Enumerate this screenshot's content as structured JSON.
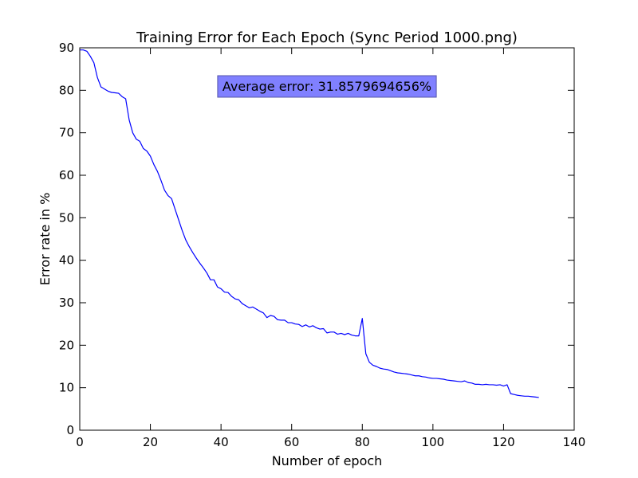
{
  "chart_data": {
    "type": "line",
    "title": "Training Error for Each Epoch (Sync Period 1000.png)",
    "xlabel": "Number of epoch",
    "ylabel": "Error rate in %",
    "xlim": [
      0,
      140
    ],
    "ylim": [
      0,
      90
    ],
    "xticks": [
      0,
      20,
      40,
      60,
      80,
      100,
      120,
      140
    ],
    "yticks": [
      0,
      10,
      20,
      30,
      40,
      50,
      60,
      70,
      80,
      90
    ],
    "grid": false,
    "annotation": {
      "text": "Average error: 31.8579694656%",
      "x": 70,
      "y": 81,
      "facecolor": "#8080ff"
    },
    "series": [
      {
        "color": "#0000ff",
        "x": [
          0,
          1,
          2,
          3,
          4,
          5,
          6,
          7,
          8,
          9,
          10,
          11,
          12,
          13,
          14,
          15,
          16,
          17,
          18,
          19,
          20,
          21,
          22,
          23,
          24,
          25,
          26,
          27,
          28,
          29,
          30,
          31,
          32,
          33,
          34,
          35,
          36,
          37,
          38,
          39,
          40,
          41,
          42,
          43,
          44,
          45,
          46,
          47,
          48,
          49,
          50,
          51,
          52,
          53,
          54,
          55,
          56,
          57,
          58,
          59,
          60,
          61,
          62,
          63,
          64,
          65,
          66,
          67,
          68,
          69,
          70,
          71,
          72,
          73,
          74,
          75,
          76,
          77,
          78,
          79,
          80,
          81,
          82,
          83,
          84,
          85,
          86,
          87,
          88,
          89,
          90,
          91,
          92,
          93,
          94,
          95,
          96,
          97,
          98,
          99,
          100,
          101,
          102,
          103,
          104,
          105,
          106,
          107,
          108,
          109,
          110,
          111,
          112,
          113,
          114,
          115,
          116,
          117,
          118,
          119,
          120,
          121,
          122,
          123,
          124,
          125,
          126,
          127,
          128,
          129,
          130
        ],
        "y": [
          89.5,
          89.5,
          89.2,
          88.0,
          86.5,
          83.0,
          80.8,
          80.3,
          79.8,
          79.5,
          79.4,
          79.3,
          78.5,
          78.0,
          73.0,
          70.0,
          68.5,
          68.0,
          66.3,
          65.7,
          64.5,
          62.5,
          60.9,
          58.8,
          56.5,
          55.2,
          54.5,
          52.0,
          49.5,
          47.0,
          44.8,
          43.2,
          41.8,
          40.5,
          39.3,
          38.2,
          37.0,
          35.4,
          35.4,
          33.7,
          33.3,
          32.5,
          32.4,
          31.5,
          30.9,
          30.7,
          29.8,
          29.3,
          28.8,
          29.0,
          28.5,
          28.0,
          27.6,
          26.5,
          27.0,
          26.8,
          26.0,
          25.9,
          25.9,
          25.3,
          25.3,
          25.0,
          24.9,
          24.4,
          24.8,
          24.3,
          24.6,
          24.1,
          23.8,
          23.9,
          22.9,
          23.1,
          23.1,
          22.6,
          22.8,
          22.5,
          22.8,
          22.4,
          22.2,
          22.2,
          26.3,
          18.0,
          16.0,
          15.3,
          15.0,
          14.6,
          14.4,
          14.3,
          14.0,
          13.7,
          13.5,
          13.4,
          13.3,
          13.2,
          13.0,
          12.8,
          12.8,
          12.6,
          12.5,
          12.3,
          12.2,
          12.2,
          12.1,
          12.0,
          11.8,
          11.7,
          11.6,
          11.5,
          11.4,
          11.6,
          11.2,
          11.1,
          10.8,
          10.8,
          10.7,
          10.8,
          10.7,
          10.7,
          10.6,
          10.7,
          10.4,
          10.7,
          8.6,
          8.4,
          8.2,
          8.1,
          8.0,
          8.0,
          7.9,
          7.8,
          7.7
        ]
      }
    ]
  }
}
